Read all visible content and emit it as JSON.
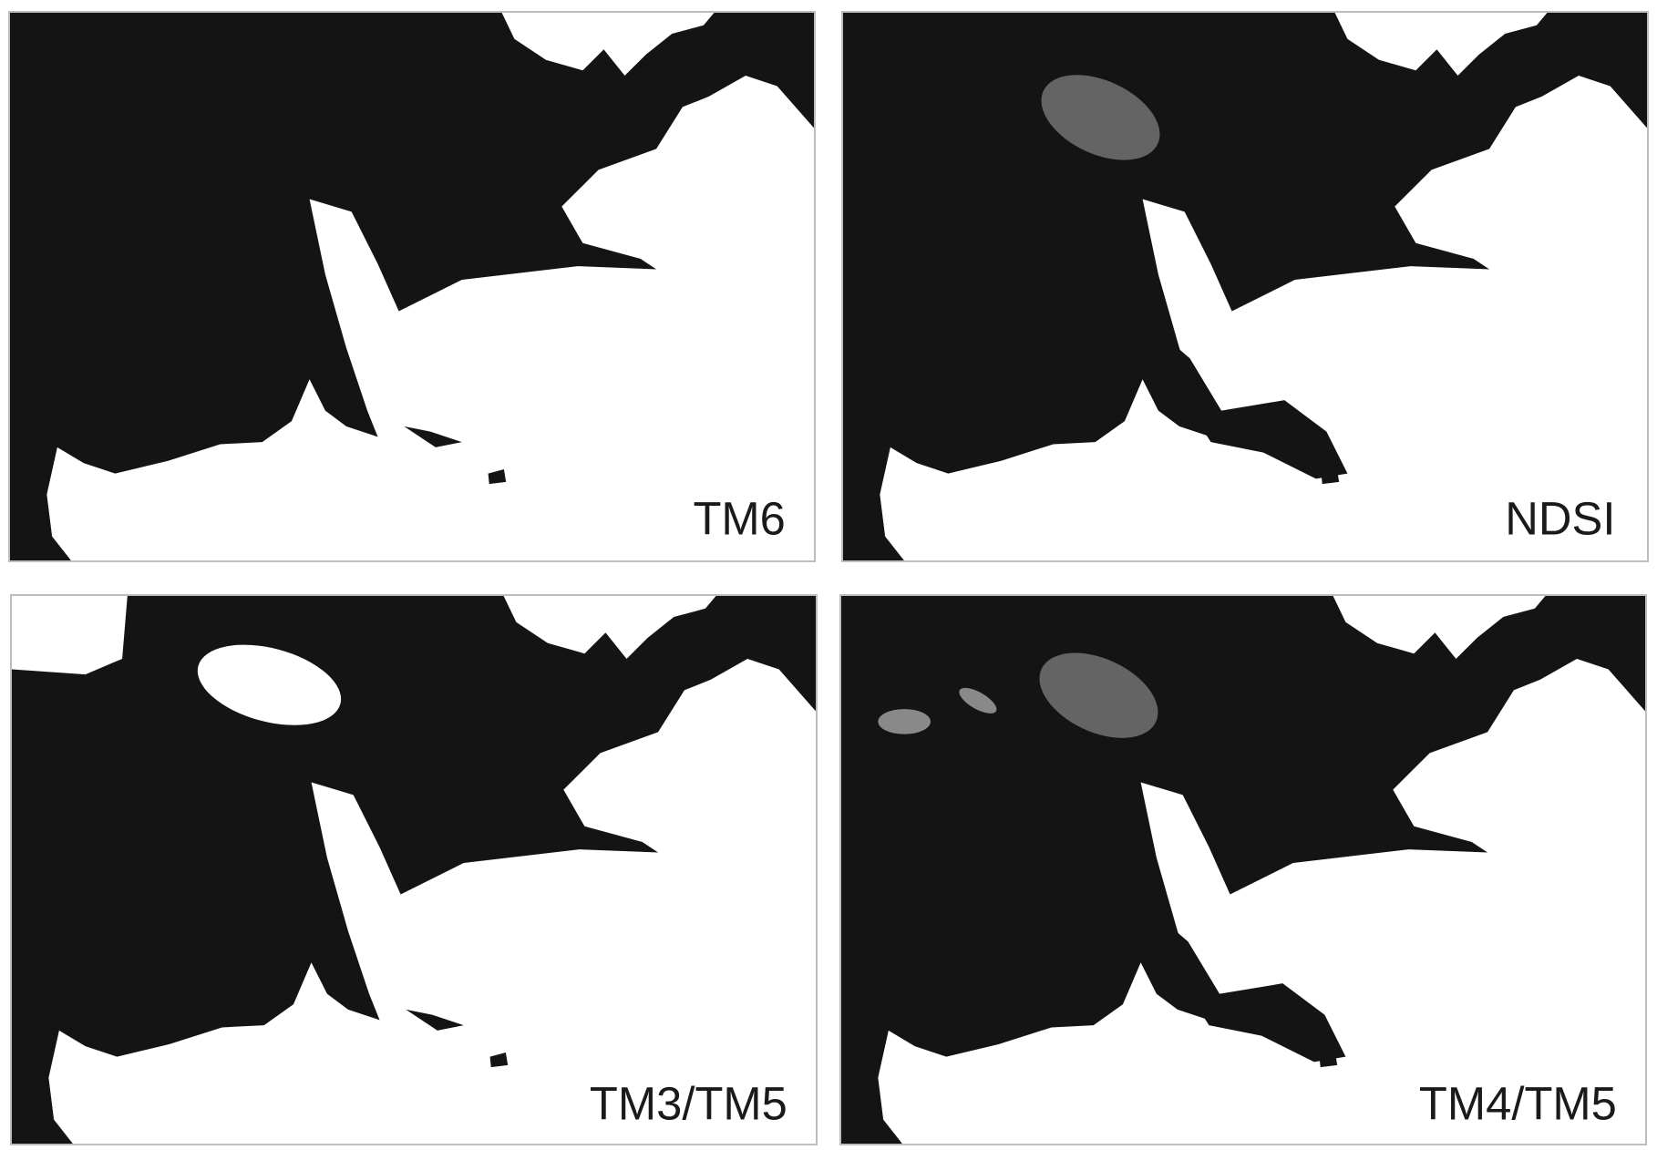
{
  "panels": [
    {
      "label": "TM6"
    },
    {
      "label": "NDSI"
    },
    {
      "label": "TM3/TM5"
    },
    {
      "label": "TM4/TM5"
    }
  ]
}
